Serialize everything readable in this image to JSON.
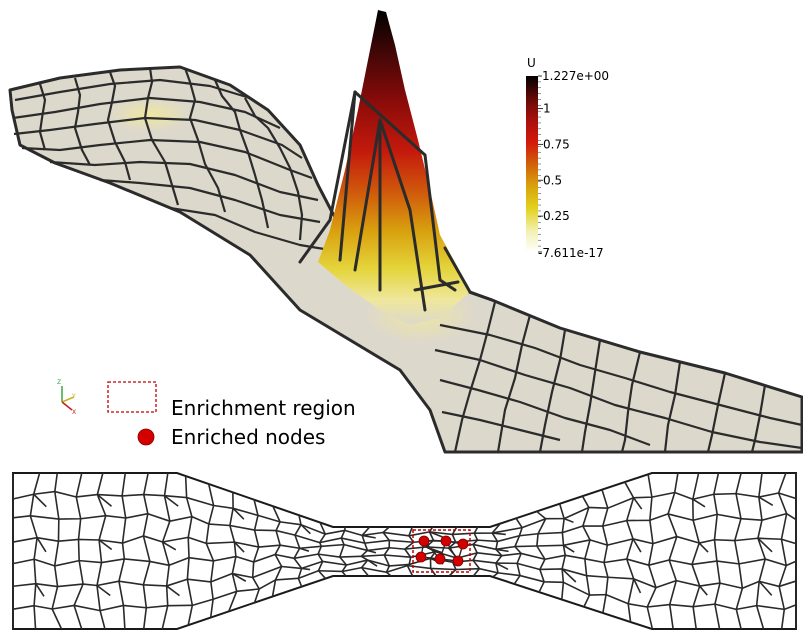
{
  "colorbar": {
    "variable": "U",
    "max_label": "1.227e+00",
    "min_label": "-7.611e-17",
    "ticks": [
      "1",
      "0.75",
      "0.5",
      "0.25"
    ],
    "tick_values": [
      1,
      0.75,
      0.5,
      0.25
    ],
    "range": [
      -7.611e-17,
      1.227
    ],
    "colors": [
      "#ffffff",
      "#f2f0b0",
      "#e2d11c",
      "#d8a00c",
      "#d0600a",
      "#d41a0a",
      "#a8100c",
      "#660a08",
      "#000000"
    ]
  },
  "legend": {
    "enrichment_region_label": "Enrichment region",
    "enriched_nodes_label": "Enriched nodes",
    "region_color": "#c00000",
    "node_color": "#d40000"
  },
  "axes_triad": {
    "z_label": "Z",
    "y_label": "Y",
    "x_label": "X"
  },
  "mesh": {
    "surface_color": "#ddd8cc",
    "edge_color": "#2b2b2b"
  },
  "enriched_nodes_count": 6
}
